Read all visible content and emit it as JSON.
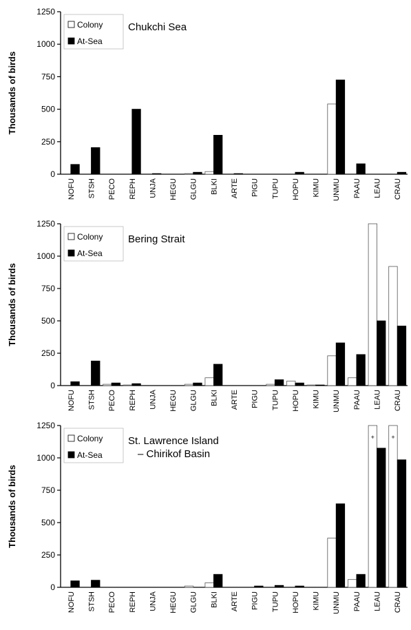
{
  "chart_data": [
    {
      "type": "bar",
      "title": "Chukchi Sea",
      "ylabel": "Thousands of birds",
      "ylim": [
        0,
        1250
      ],
      "yticks": [
        0,
        250,
        500,
        750,
        1000,
        1250
      ],
      "grid": false,
      "legend": "top-left",
      "categories": [
        "NOFU",
        "STSH",
        "PECO",
        "REPH",
        "UNJA",
        "HEGU",
        "GLGU",
        "BLKI",
        "ARTE",
        "PIGU",
        "TUPU",
        "HOPU",
        "KIMU",
        "UNMU",
        "PAAU",
        "LEAU",
        "CRAU"
      ],
      "series": [
        {
          "name": "Colony",
          "color": "#ffffff",
          "values": [
            0,
            0,
            0,
            0,
            0,
            0,
            5,
            20,
            0,
            0,
            0,
            0,
            0,
            540,
            0,
            0,
            0
          ]
        },
        {
          "name": "At-Sea",
          "color": "#000000",
          "values": [
            75,
            205,
            0,
            500,
            5,
            0,
            15,
            300,
            5,
            0,
            0,
            15,
            0,
            725,
            80,
            0,
            15
          ]
        }
      ]
    },
    {
      "type": "bar",
      "title": "Bering Strait",
      "ylabel": "Thousands of birds",
      "ylim": [
        0,
        1250
      ],
      "yticks": [
        0,
        250,
        500,
        750,
        1000,
        1250
      ],
      "grid": false,
      "legend": "top-left",
      "categories": [
        "NOFU",
        "STSH",
        "PECO",
        "REPH",
        "UNJA",
        "HEGU",
        "GLGU",
        "BLKI",
        "ARTE",
        "PIGU",
        "TUPU",
        "HOPU",
        "KIMU",
        "UNMU",
        "PAAU",
        "LEAU",
        "CRAU"
      ],
      "series": [
        {
          "name": "Colony",
          "color": "#ffffff",
          "values": [
            0,
            0,
            10,
            5,
            0,
            0,
            10,
            60,
            0,
            0,
            10,
            35,
            5,
            230,
            60,
            1250,
            920
          ]
        },
        {
          "name": "At-Sea",
          "color": "#000000",
          "values": [
            30,
            190,
            20,
            15,
            0,
            0,
            20,
            165,
            0,
            0,
            45,
            20,
            5,
            330,
            240,
            500,
            460
          ]
        }
      ]
    },
    {
      "type": "bar",
      "title": "St. Lawrence Island",
      "subtitle": "– Chirikof Basin",
      "ylabel": "Thousands of birds",
      "ylim": [
        0,
        1250
      ],
      "yticks": [
        0,
        250,
        500,
        750,
        1000,
        1250
      ],
      "grid": false,
      "legend": "top-left",
      "categories": [
        "NOFU",
        "STSH",
        "PECO",
        "REPH",
        "UNJA",
        "HEGU",
        "GLGU",
        "BLKI",
        "ARTE",
        "PIGU",
        "TUPU",
        "HOPU",
        "KIMU",
        "UNMU",
        "PAAU",
        "LEAU",
        "CRAU"
      ],
      "series": [
        {
          "name": "Colony",
          "color": "#ffffff",
          "values": [
            0,
            0,
            0,
            0,
            0,
            0,
            10,
            35,
            0,
            0,
            0,
            0,
            0,
            380,
            60,
            1250,
            1250
          ]
        },
        {
          "name": "At-Sea",
          "color": "#000000",
          "values": [
            50,
            55,
            0,
            0,
            0,
            0,
            0,
            100,
            0,
            10,
            15,
            10,
            0,
            645,
            100,
            1075,
            985
          ]
        }
      ],
      "annotations": [
        {
          "category": "LEAU",
          "text": "+"
        },
        {
          "category": "CRAU",
          "text": "+"
        }
      ]
    }
  ]
}
